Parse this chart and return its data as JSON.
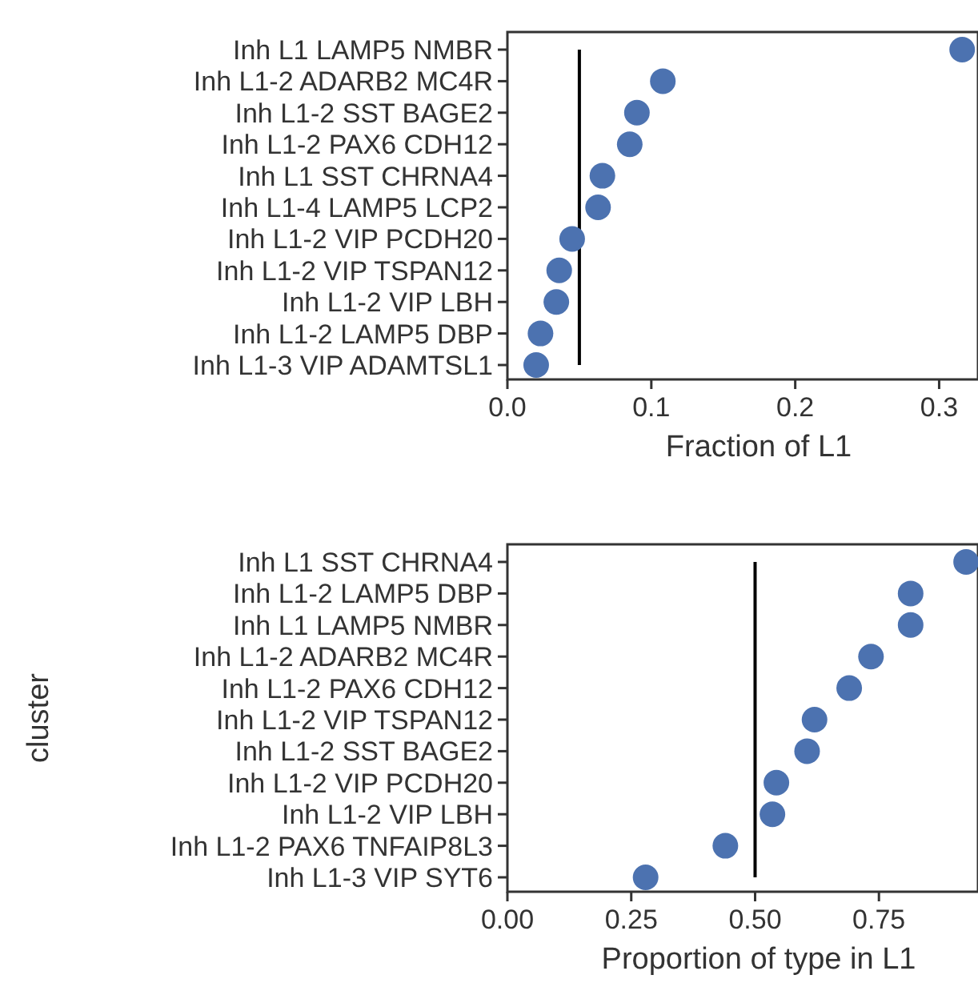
{
  "chart_data": [
    {
      "type": "scatter",
      "orientation": "horizontal",
      "xlabel": "Fraction of L1",
      "categories": [
        "Inh L1 LAMP5 NMBR",
        "Inh L1-2 ADARB2 MC4R",
        "Inh L1-2 SST BAGE2",
        "Inh L1-2 PAX6 CDH12",
        "Inh L1 SST CHRNA4",
        "Inh L1-4 LAMP5 LCP2",
        "Inh L1-2 VIP PCDH20",
        "Inh L1-2 VIP TSPAN12",
        "Inh L1-2 VIP LBH",
        "Inh L1-2 LAMP5 DBP",
        "Inh L1-3 VIP ADAMTSL1"
      ],
      "series": [
        {
          "color": "#4c72b0",
          "values": [
            0.316,
            0.108,
            0.09,
            0.085,
            0.066,
            0.063,
            0.045,
            0.036,
            0.034,
            0.023,
            0.02
          ]
        }
      ],
      "xlim": [
        0,
        0.327
      ],
      "xticks": [
        {
          "value": 0,
          "label": "0.0"
        },
        0.1,
        0.2,
        0.3
      ],
      "marker": "circle",
      "grid": false,
      "ref_lines": [
        {
          "axis": "x",
          "value": 0.05,
          "color": "#000000"
        }
      ]
    },
    {
      "type": "scatter",
      "orientation": "horizontal",
      "xlabel": "Proportion of type in L1",
      "ylabel": "cluster",
      "categories": [
        "Inh L1 SST CHRNA4",
        "Inh L1-2 LAMP5 DBP",
        "Inh L1 LAMP5 NMBR",
        "Inh L1-2 ADARB2 MC4R",
        "Inh L1-2 PAX6 CDH12",
        "Inh L1-2 VIP TSPAN12",
        "Inh L1-2 SST BAGE2",
        "Inh L1-2 VIP PCDH20",
        "Inh L1-2 VIP LBH",
        "Inh L1-2 PAX6 TNFAIP8L3",
        "Inh L1-3 VIP SYT6"
      ],
      "series": [
        {
          "color": "#4c72b0",
          "values": [
            0.926,
            0.814,
            0.814,
            0.734,
            0.69,
            0.62,
            0.605,
            0.543,
            0.535,
            0.44,
            0.279
          ]
        }
      ],
      "xlim": [
        0,
        0.95
      ],
      "xticks": [
        {
          "value": 0,
          "label": "0.00"
        },
        {
          "value": 0.25,
          "label": "0.25"
        },
        {
          "value": 0.5,
          "label": "0.50"
        },
        {
          "value": 0.75,
          "label": "0.75"
        }
      ],
      "marker": "circle",
      "grid": false,
      "ref_lines": [
        {
          "axis": "x",
          "value": 0.5,
          "color": "#000000"
        }
      ]
    }
  ]
}
